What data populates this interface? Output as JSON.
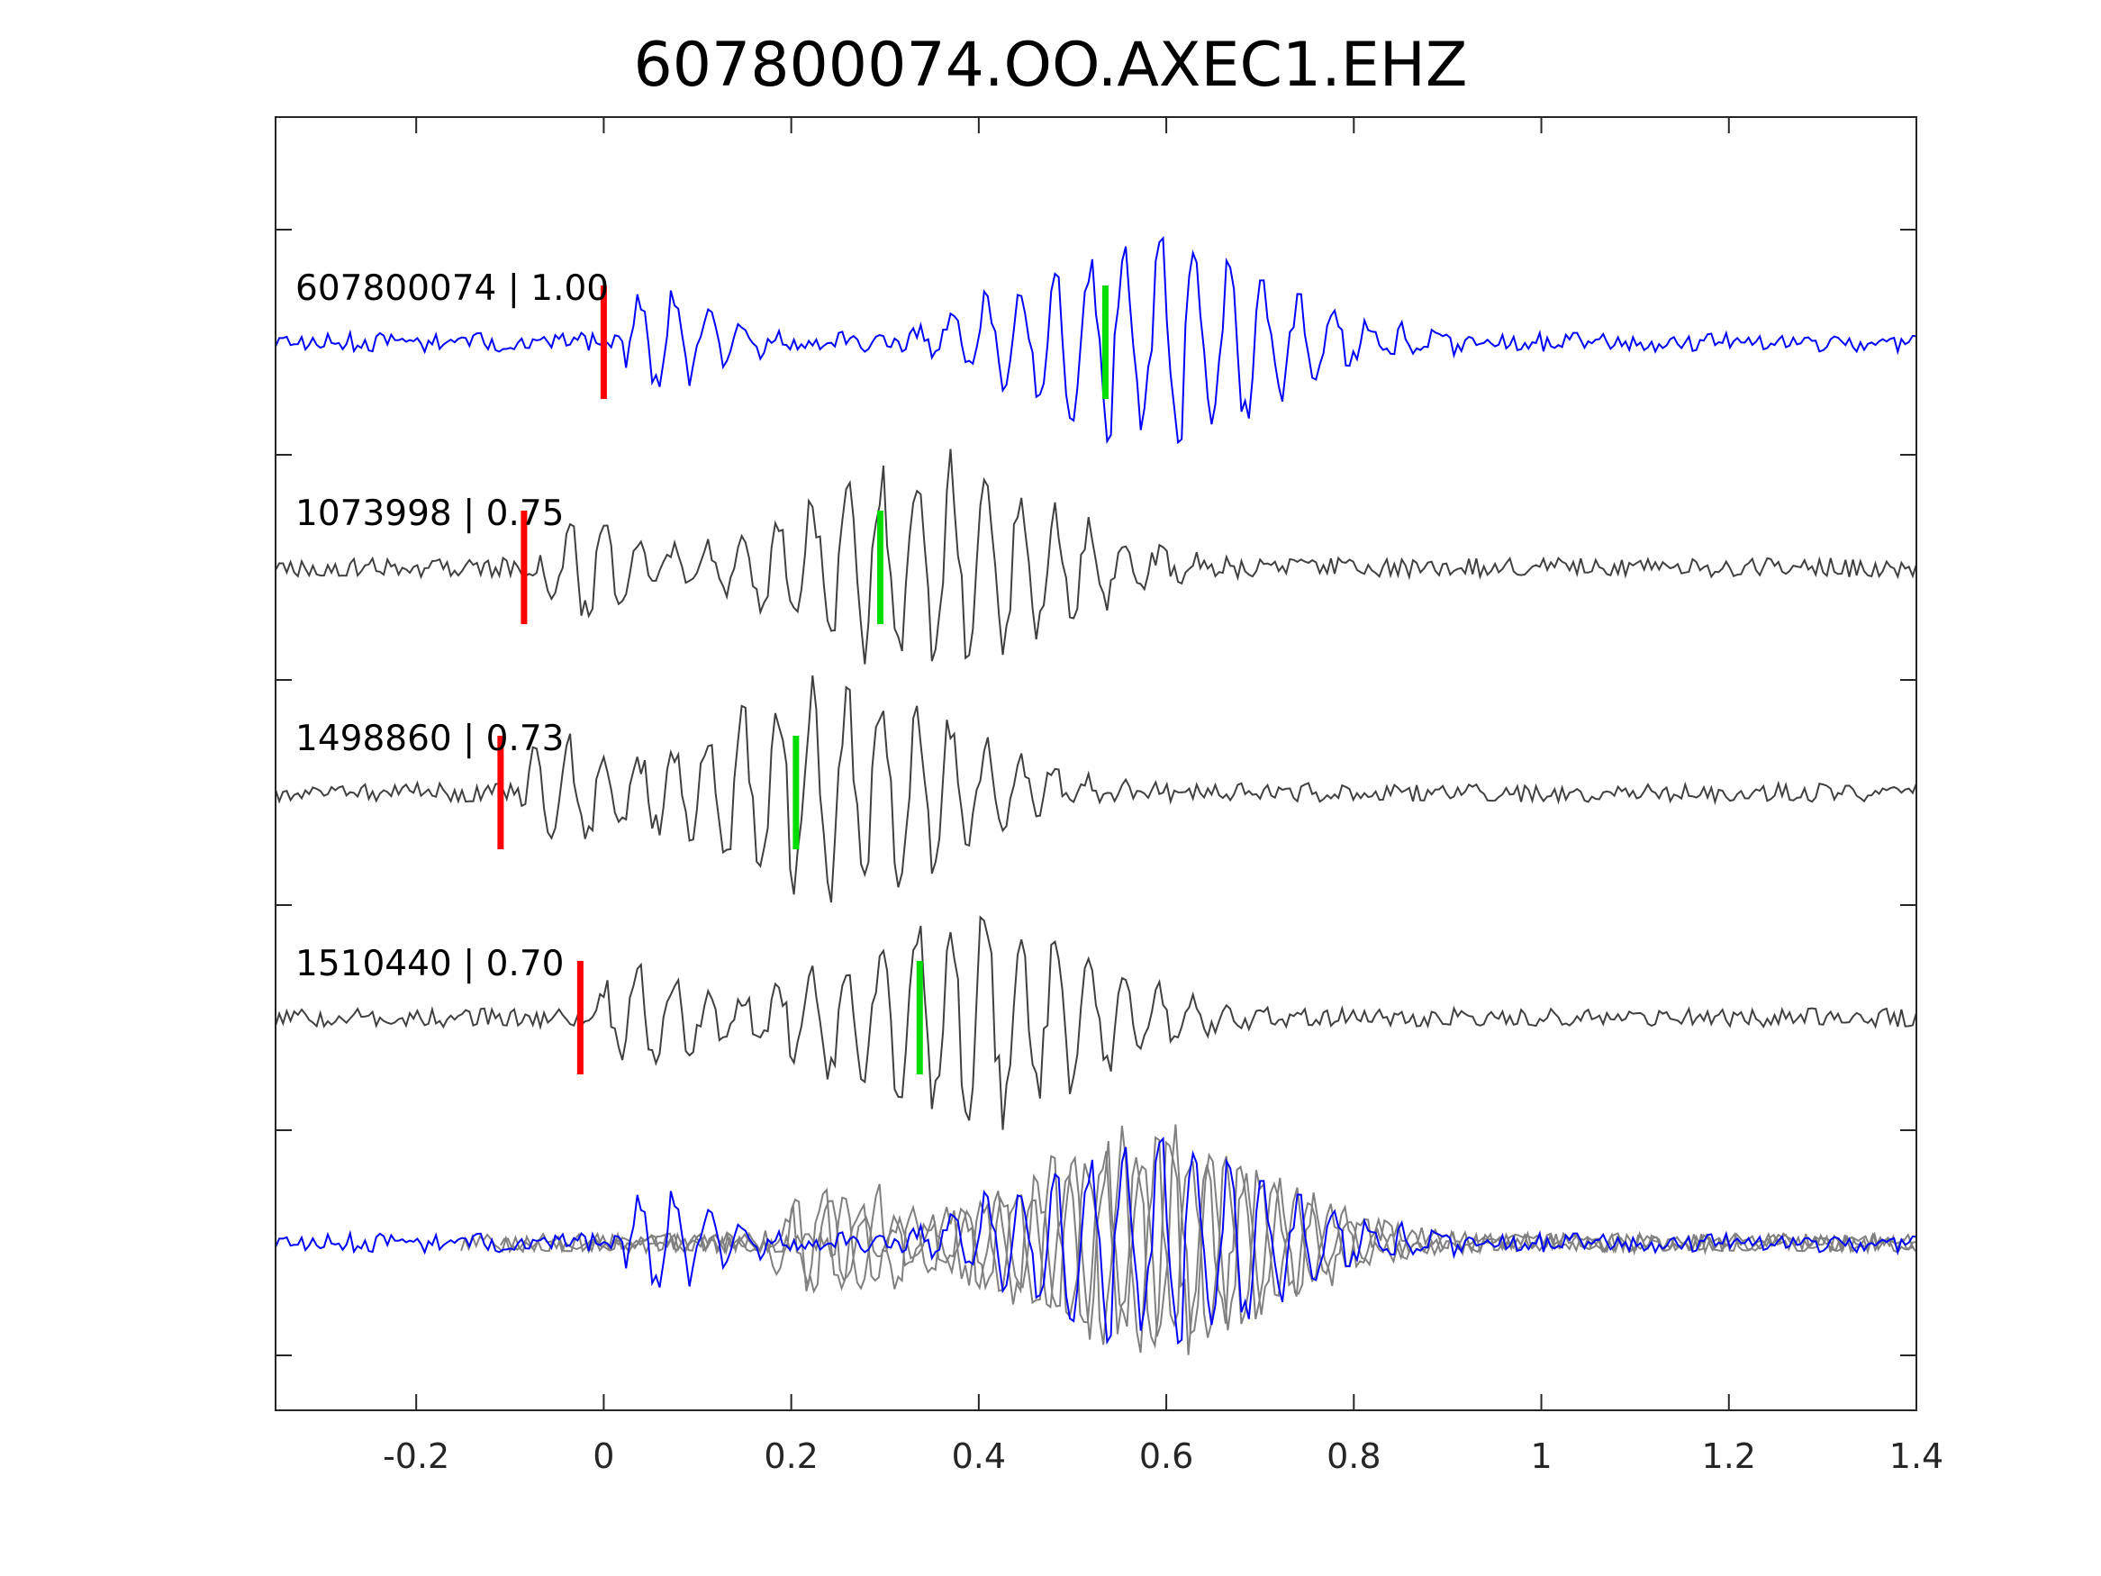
{
  "title": "607800074.OO.AXEC1.EHZ",
  "chart_data": {
    "type": "line",
    "title": "607800074.OO.AXEC1.EHZ",
    "xlabel": "",
    "ylabel": "",
    "xlim": [
      -0.35,
      1.4
    ],
    "x_ticks": [
      -0.2,
      0,
      0.2,
      0.4,
      0.6,
      0.8,
      1,
      1.2,
      1.4
    ],
    "x_tick_labels": [
      "-0.2",
      "0",
      "0.2",
      "0.4",
      "0.6",
      "0.8",
      "1",
      "1.2",
      "1.4"
    ],
    "grid": false,
    "overlay_panel": "bottom",
    "colors": {
      "template": "#0000ff",
      "match": "#404040",
      "overlay_match": "#808080",
      "p_pick": "#ff0000",
      "s_pick": "#00dd00",
      "axes": "#262626"
    },
    "series": [
      {
        "name": "607800074 | 1.00",
        "event_id": "607800074",
        "cc": "1.00",
        "p_pick": 0.0,
        "s_pick": 0.535,
        "onset": 0.02,
        "seed": 11,
        "template": true
      },
      {
        "name": "1073998 | 0.75",
        "event_id": "1073998",
        "cc": "0.75",
        "p_pick": -0.085,
        "s_pick": 0.295,
        "onset": -0.07,
        "seed": 23,
        "template": false
      },
      {
        "name": "1498860 | 0.73",
        "event_id": "1498860",
        "cc": "0.73",
        "p_pick": -0.11,
        "s_pick": 0.205,
        "onset": -0.09,
        "seed": 37,
        "template": false
      },
      {
        "name": "1510440 | 0.70",
        "event_id": "1510440",
        "cc": "0.70",
        "p_pick": -0.025,
        "s_pick": 0.337,
        "onset": -0.01,
        "seed": 53,
        "template": false
      }
    ]
  }
}
